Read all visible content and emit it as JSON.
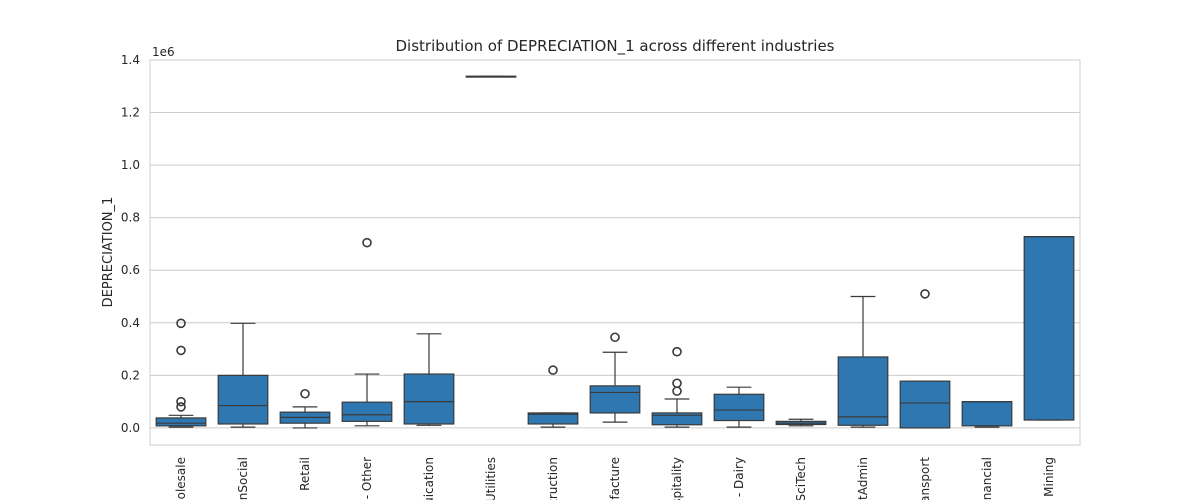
{
  "chart_data": {
    "type": "box",
    "title": "Distribution of DEPRECIATION_1 across different industries",
    "xlabel": "",
    "ylabel": "DEPRECIATION_1",
    "scale_label": "1e6",
    "ylim": [
      -0.065,
      1.4
    ],
    "yticks": [
      0.0,
      0.2,
      0.4,
      0.6,
      0.8,
      1.0,
      1.2,
      1.4
    ],
    "ytick_labels": [
      "0.0",
      "0.2",
      "0.4",
      "0.6",
      "0.8",
      "1.0",
      "1.2",
      "1.4"
    ],
    "grid": true,
    "box_color": "#2f77b0",
    "line_color": "#3a3a3a",
    "categories": [
      "olesale",
      "nSocial",
      "Retail",
      "- Other",
      "uication",
      "Utilities",
      "truction",
      "facture",
      "spitality",
      "- Dairy",
      "SciTech",
      "tAdmin",
      "ansport",
      "nancial",
      "Mining"
    ],
    "boxes": [
      {
        "category": "olesale",
        "whislo": 0.003,
        "q1": 0.008,
        "med": 0.018,
        "q3": 0.038,
        "whishi": 0.048,
        "fliers": [
          0.08,
          0.1,
          0.295,
          0.398
        ]
      },
      {
        "category": "nSocial",
        "whislo": 0.003,
        "q1": 0.015,
        "med": 0.085,
        "q3": 0.2,
        "whishi": 0.398,
        "fliers": []
      },
      {
        "category": "Retail",
        "whislo": 0.0,
        "q1": 0.018,
        "med": 0.04,
        "q3": 0.06,
        "whishi": 0.08,
        "fliers": [
          0.13
        ]
      },
      {
        "category": "- Other",
        "whislo": 0.008,
        "q1": 0.025,
        "med": 0.05,
        "q3": 0.098,
        "whishi": 0.205,
        "fliers": [
          0.705
        ]
      },
      {
        "category": "uication",
        "whislo": 0.01,
        "q1": 0.015,
        "med": 0.1,
        "q3": 0.205,
        "whishi": 0.358,
        "fliers": []
      },
      {
        "category": "Utilities",
        "whislo": 1.338,
        "q1": 1.338,
        "med": 1.338,
        "q3": 1.338,
        "whishi": 1.338,
        "fliers": []
      },
      {
        "category": "truction",
        "whislo": 0.003,
        "q1": 0.015,
        "med": 0.052,
        "q3": 0.057,
        "whishi": 0.057,
        "fliers": [
          0.22
        ]
      },
      {
        "category": "facture",
        "whislo": 0.022,
        "q1": 0.057,
        "med": 0.135,
        "q3": 0.16,
        "whishi": 0.288,
        "fliers": [
          0.345
        ]
      },
      {
        "category": "spitality",
        "whislo": 0.003,
        "q1": 0.012,
        "med": 0.048,
        "q3": 0.057,
        "whishi": 0.11,
        "fliers": [
          0.14,
          0.17,
          0.29
        ]
      },
      {
        "category": "- Dairy",
        "whislo": 0.003,
        "q1": 0.028,
        "med": 0.068,
        "q3": 0.128,
        "whishi": 0.155,
        "fliers": []
      },
      {
        "category": "SciTech",
        "whislo": 0.008,
        "q1": 0.013,
        "med": 0.018,
        "q3": 0.025,
        "whishi": 0.033,
        "fliers": []
      },
      {
        "category": "tAdmin",
        "whislo": 0.003,
        "q1": 0.01,
        "med": 0.042,
        "q3": 0.27,
        "whishi": 0.5,
        "fliers": []
      },
      {
        "category": "ansport",
        "whislo": 0.0,
        "q1": 0.0,
        "med": 0.095,
        "q3": 0.178,
        "whishi": 0.178,
        "fliers": [
          0.51
        ]
      },
      {
        "category": "nancial",
        "whislo": 0.003,
        "q1": 0.008,
        "med": 0.1,
        "q3": 0.1,
        "whishi": 0.1,
        "fliers": []
      },
      {
        "category": "Mining",
        "whislo": 0.03,
        "q1": 0.03,
        "med": 0.728,
        "q3": 0.728,
        "whishi": 0.728,
        "fliers": []
      }
    ]
  }
}
